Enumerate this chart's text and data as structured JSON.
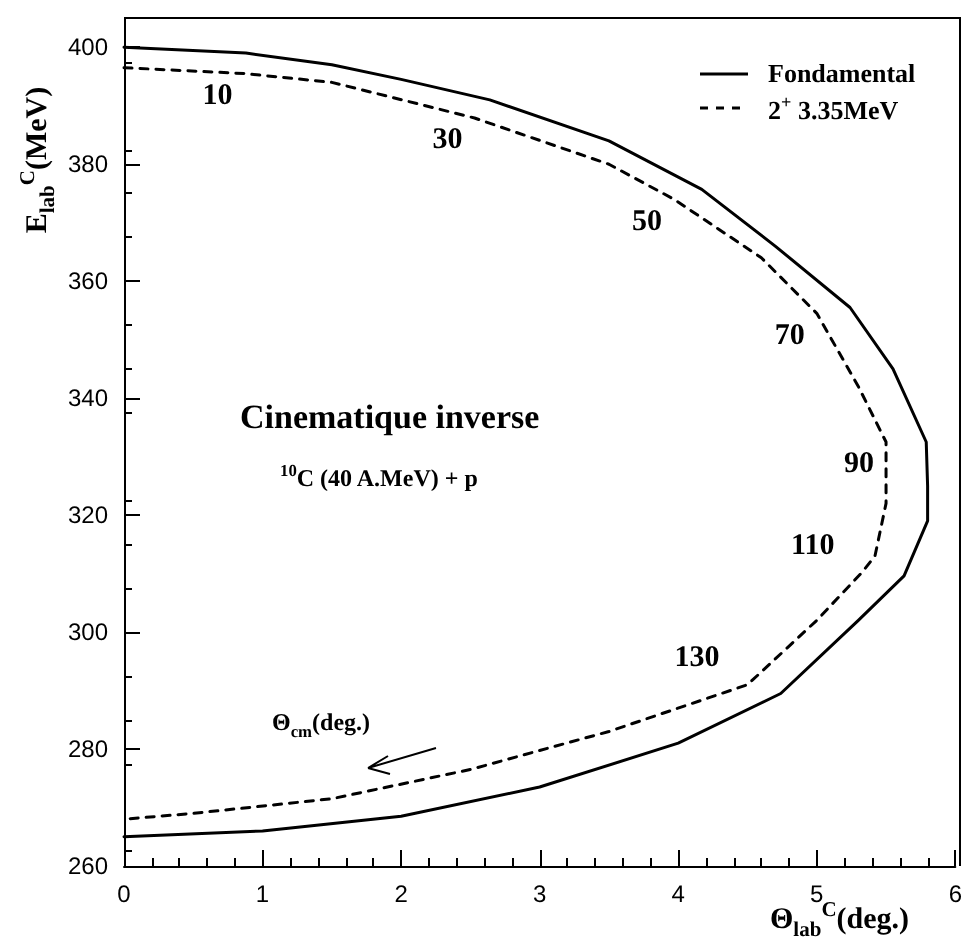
{
  "chart_data": {
    "type": "line",
    "xlabel": "Θ$_{lab}$$^{C}$(deg.)",
    "ylabel": "E$_{lab}$$^{C}$(MeV)",
    "xlim": [
      0,
      6
    ],
    "xticks": [
      0,
      1,
      2,
      3,
      4,
      5,
      6
    ],
    "ylim": [
      260,
      405
    ],
    "yticks": [
      260,
      280,
      300,
      320,
      340,
      360,
      380,
      400
    ],
    "grid": false,
    "legend": "top right",
    "marker": "none",
    "series": [
      {
        "name": "Fondamental",
        "color": "#000000",
        "line_style": "solid",
        "x": [
          0,
          0.88,
          1.5,
          2.0,
          2.64,
          3.5,
          4.17,
          4.7,
          5.24,
          5.55,
          5.79,
          5.8,
          5.8,
          5.63,
          5.3,
          4.74,
          4.0,
          3.0,
          2.0,
          1.0,
          0
        ],
        "values": [
          400,
          399,
          397,
          394.5,
          391,
          384,
          375.7,
          366,
          355.5,
          345,
          332.5,
          325,
          319,
          309.6,
          302,
          289.5,
          281,
          273.5,
          268.5,
          266,
          265
        ]
      },
      {
        "name": "2$^{+}$ 3.35MeV",
        "color": "#000000",
        "line_style": "dashed",
        "x": [
          0,
          0.87,
          1.5,
          2.53,
          3.5,
          3.97,
          4.6,
          5.0,
          5.3,
          5.5,
          5.5,
          5.42,
          5.33,
          5.0,
          4.5,
          3.5,
          2.5,
          1.5,
          0.5,
          0
        ],
        "values": [
          396.5,
          395.5,
          394,
          387.9,
          380,
          374,
          364,
          354.5,
          342,
          332.5,
          322,
          313,
          310.3,
          302,
          291,
          283,
          276.5,
          271.5,
          269,
          268
        ]
      }
    ],
    "annotations": [
      "Cinematique inverse",
      "$^{10}$C (40 A.MeV) + p",
      "Θ$_{cm}$(deg.)",
      {
        "text": "10",
        "x": 0.87,
        "y": 395.5
      },
      {
        "text": "30",
        "x": 2.53,
        "y": 387.9
      },
      {
        "text": "50",
        "x": 3.97,
        "y": 374
      },
      {
        "text": "70",
        "x": 5.0,
        "y": 354.5
      },
      {
        "text": "90",
        "x": 5.5,
        "y": 332.5
      },
      {
        "text": "110",
        "x": 5.33,
        "y": 310.3
      },
      {
        "text": "130",
        "x": 4.5,
        "y": 291
      }
    ]
  }
}
